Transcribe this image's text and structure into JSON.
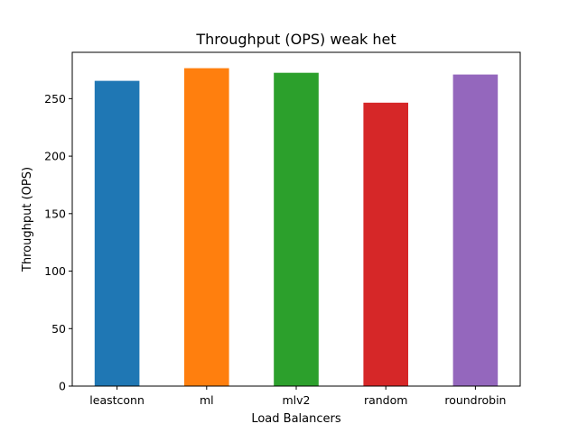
{
  "chart_data": {
    "type": "bar",
    "title": "Throughput (OPS) weak het",
    "xlabel": "Load Balancers",
    "ylabel": "Throughput (OPS)",
    "categories": [
      "leastconn",
      "ml",
      "mlv2",
      "random",
      "roundrobin"
    ],
    "values": [
      265.5,
      276.5,
      272.5,
      246.5,
      271.0
    ],
    "colors": [
      "#1f77b4",
      "#ff7f0e",
      "#2ca02c",
      "#d62728",
      "#9467bd"
    ],
    "ylim": [
      0,
      290.3
    ],
    "yticks": [
      0,
      50,
      100,
      150,
      200,
      250
    ],
    "grid": false,
    "legend": "none"
  }
}
